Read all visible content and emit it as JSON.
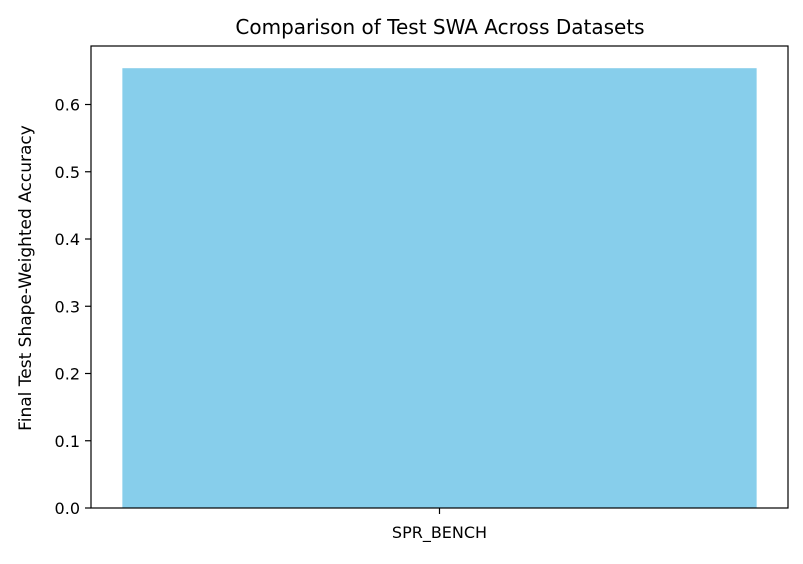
{
  "chart_data": {
    "type": "bar",
    "title": "Comparison of Test SWA Across Datasets",
    "xlabel": "",
    "ylabel": "Final Test Shape-Weighted Accuracy",
    "categories": [
      "SPR_BENCH"
    ],
    "values": [
      0.654
    ],
    "ylim": [
      0,
      0.687
    ],
    "yticks": [
      0.0,
      0.1,
      0.2,
      0.3,
      0.4,
      0.5,
      0.6
    ],
    "ytick_labels": [
      "0.0",
      "0.1",
      "0.2",
      "0.3",
      "0.4",
      "0.5",
      "0.6"
    ],
    "grid": false,
    "bar_color": "#87CEEB"
  }
}
